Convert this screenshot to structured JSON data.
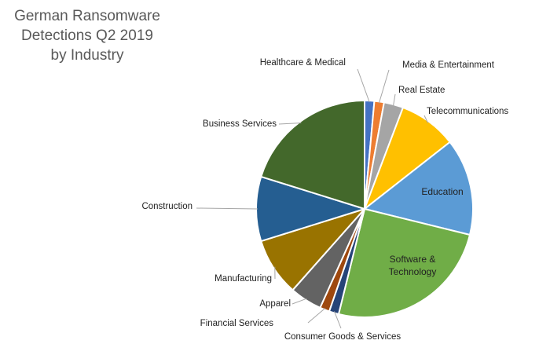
{
  "chart_data": {
    "type": "pie",
    "title_lines": [
      "German Ransomware",
      "Detections Q2 2019",
      "by Industry"
    ],
    "slices": [
      {
        "label": "Healthcare & Medical",
        "value": 1.5,
        "color": "#4472C4"
      },
      {
        "label": "Media & Entertainment",
        "value": 1.5,
        "color": "#ED7D31"
      },
      {
        "label": "Real Estate",
        "value": 3,
        "color": "#A5A5A5"
      },
      {
        "label": "Telecommunications",
        "value": 9,
        "color": "#FFC000"
      },
      {
        "label": "Education",
        "value": 15,
        "color": "#5B9BD5"
      },
      {
        "label": "Software & Technology",
        "value": 26,
        "color": "#70AD47"
      },
      {
        "label": "Consumer Goods & Services",
        "value": 1.5,
        "color": "#264478"
      },
      {
        "label": "Financial Services",
        "value": 1.5,
        "color": "#9E480E"
      },
      {
        "label": "Apparel",
        "value": 5,
        "color": "#636363"
      },
      {
        "label": "Manufacturing",
        "value": 9,
        "color": "#997300"
      },
      {
        "label": "Construction",
        "value": 10,
        "color": "#255E91"
      },
      {
        "label": "Business Services",
        "value": 21,
        "color": "#43682B"
      }
    ]
  }
}
